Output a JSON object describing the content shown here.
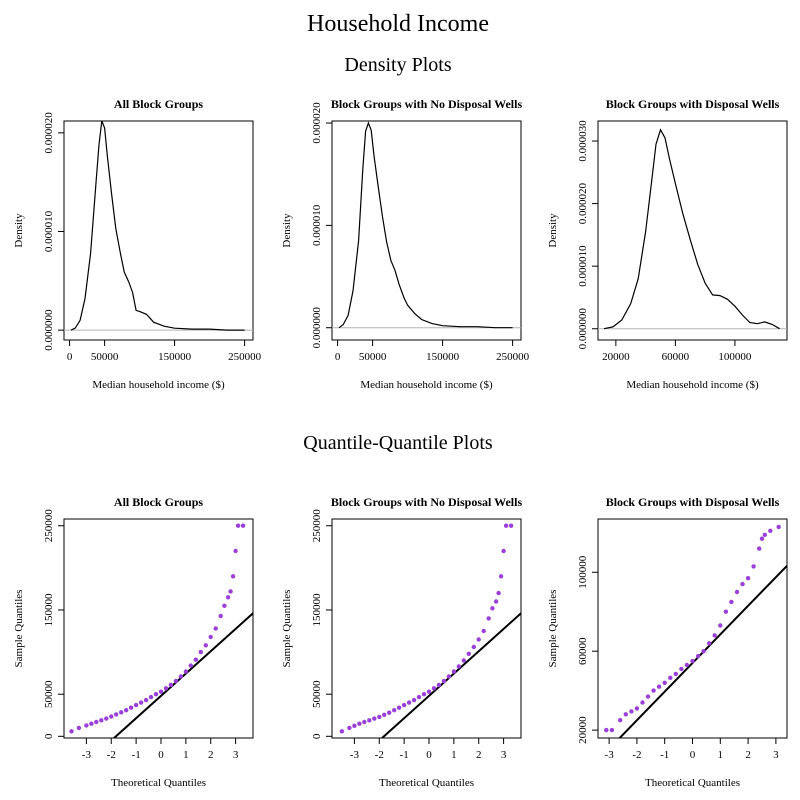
{
  "title": "Household Income",
  "section_density_title": "Density Plots",
  "section_qq_title": "Quantile-Quantile Plots",
  "colors": {
    "qq_points": "#9b3fd9",
    "qq_line": "#000000",
    "density_line": "#000000",
    "baseline": "#b3b3b3"
  },
  "chart_data": [
    {
      "type": "line",
      "kind": "density",
      "title": "All Block Groups",
      "xlabel": "Median household income ($)",
      "ylabel": "Density",
      "xlim": [
        -8000,
        262000
      ],
      "ylim": [
        -1e-06,
        2.12e-05
      ],
      "xticks": [
        0,
        50000,
        150000,
        250000
      ],
      "xtick_labels": [
        "0",
        "50000",
        "150000",
        "250000"
      ],
      "yticks": [
        0,
        1e-05,
        2e-05
      ],
      "ytick_labels": [
        "0.000000",
        "0.000010",
        "0.000020"
      ],
      "x": [
        2000,
        8000,
        15000,
        22000,
        30000,
        38000,
        42000,
        46000,
        50000,
        54000,
        60000,
        66000,
        72000,
        78000,
        85000,
        90000,
        95000,
        100000,
        110000,
        120000,
        135000,
        150000,
        175000,
        200000,
        225000,
        250000
      ],
      "y": [
        0.0,
        2e-07,
        1e-06,
        3.2e-06,
        7.8e-06,
        1.52e-05,
        1.88e-05,
        2.12e-05,
        2.05e-05,
        1.76e-05,
        1.38e-05,
        1.03e-05,
        8e-06,
        5.9e-06,
        4.8e-06,
        3.8e-06,
        2e-06,
        1.9e-06,
        1.6e-06,
        8e-07,
        4e-07,
        2e-07,
        1e-07,
        1e-07,
        0.0,
        0.0
      ]
    },
    {
      "type": "line",
      "kind": "density",
      "title": "Block Groups with No Disposal Wells",
      "xlabel": "Median household income ($)",
      "ylabel": "Density",
      "xlim": [
        -8000,
        262000
      ],
      "ylim": [
        -1.2e-06,
        2.02e-05
      ],
      "xticks": [
        0,
        50000,
        150000,
        250000
      ],
      "xtick_labels": [
        "0",
        "50000",
        "150000",
        "250000"
      ],
      "yticks": [
        0,
        1e-05,
        2e-05
      ],
      "ytick_labels": [
        "0.000000",
        "0.000010",
        "0.000020"
      ],
      "x": [
        2000,
        8000,
        15000,
        22000,
        30000,
        36000,
        40000,
        44000,
        48000,
        52000,
        58000,
        64000,
        70000,
        76000,
        82000,
        88000,
        95000,
        100000,
        110000,
        120000,
        135000,
        150000,
        175000,
        200000,
        225000,
        250000
      ],
      "y": [
        0.0,
        3e-07,
        1.2e-06,
        3.6e-06,
        8.5e-06,
        1.55e-05,
        1.92e-05,
        2e-05,
        1.93e-05,
        1.68e-05,
        1.38e-05,
        1.09e-05,
        8.4e-06,
        6.6e-06,
        5.6e-06,
        4.2e-06,
        2.9e-06,
        2.2e-06,
        1.4e-06,
        8e-07,
        4e-07,
        2e-07,
        1e-07,
        1e-07,
        0.0,
        0.0
      ]
    },
    {
      "type": "line",
      "kind": "density",
      "title": "Block Groups with Disposal Wells",
      "xlabel": "Median household income ($)",
      "ylabel": "Density",
      "xlim": [
        8000,
        135000
      ],
      "ylim": [
        -1.8e-06,
        3.32e-05
      ],
      "xticks": [
        20000,
        60000,
        100000
      ],
      "xtick_labels": [
        "20000",
        "60000",
        "100000"
      ],
      "yticks": [
        0,
        1e-05,
        2e-05,
        3e-05
      ],
      "ytick_labels": [
        "0.000000",
        "0.000010",
        "0.000020",
        "0.000030"
      ],
      "x": [
        12000,
        18000,
        24000,
        30000,
        35000,
        40000,
        44000,
        47000,
        50000,
        53000,
        56000,
        60000,
        65000,
        70000,
        75000,
        80000,
        85000,
        90000,
        95000,
        100000,
        105000,
        110000,
        115000,
        120000,
        125000,
        130000
      ],
      "y": [
        0.0,
        3e-07,
        1.4e-06,
        4e-06,
        8e-06,
        1.55e-05,
        2.35e-05,
        2.95e-05,
        3.18e-05,
        3.05e-05,
        2.72e-05,
        2.32e-05,
        1.84e-05,
        1.42e-05,
        1.03e-05,
        7.3e-06,
        5.4e-06,
        5.3e-06,
        4.7e-06,
        3.6e-06,
        2.2e-06,
        1e-06,
        8e-07,
        1.1e-06,
        7e-07,
        0.0
      ]
    },
    {
      "type": "scatter",
      "kind": "qq",
      "title": "All Block Groups",
      "xlabel": "Theoretical Quantiles",
      "ylabel": "Sample Quantiles",
      "xlim": [
        -3.9,
        3.7
      ],
      "ylim": [
        -2000,
        258000
      ],
      "xticks": [
        -3,
        -2,
        -1,
        0,
        1,
        2,
        3
      ],
      "xtick_labels": [
        "-3",
        "-2",
        "-1",
        "0",
        "1",
        "2",
        "3"
      ],
      "yticks": [
        0,
        50000,
        150000,
        250000
      ],
      "ytick_labels": [
        "0",
        "50000",
        "150000",
        "250000"
      ],
      "reference_line": {
        "intercept": 48000,
        "slope": 26500
      },
      "x": [
        -3.6,
        -3.3,
        -3.0,
        -2.8,
        -2.6,
        -2.4,
        -2.2,
        -2.0,
        -1.8,
        -1.6,
        -1.4,
        -1.2,
        -1.0,
        -0.8,
        -0.6,
        -0.4,
        -0.2,
        0.0,
        0.2,
        0.4,
        0.6,
        0.8,
        1.0,
        1.2,
        1.4,
        1.6,
        1.8,
        2.0,
        2.2,
        2.4,
        2.55,
        2.7,
        2.8,
        2.9,
        3.0,
        3.1,
        3.3
      ],
      "y": [
        6000,
        10000,
        13000,
        15000,
        17000,
        19000,
        21000,
        23500,
        26000,
        28500,
        31000,
        34000,
        37000,
        40000,
        43000,
        46500,
        50000,
        53000,
        57000,
        61000,
        65500,
        71000,
        77000,
        84000,
        91000,
        100000,
        108000,
        118000,
        128000,
        143000,
        155000,
        165000,
        172000,
        190000,
        220000,
        250000,
        250000
      ]
    },
    {
      "type": "scatter",
      "kind": "qq",
      "title": "Block Groups with No Disposal Wells",
      "xlabel": "Theoretical Quantiles",
      "ylabel": "Sample Quantiles",
      "xlim": [
        -3.9,
        3.7
      ],
      "ylim": [
        -2000,
        258000
      ],
      "xticks": [
        -3,
        -2,
        -1,
        0,
        1,
        2,
        3
      ],
      "xtick_labels": [
        "-3",
        "-2",
        "-1",
        "0",
        "1",
        "2",
        "3"
      ],
      "yticks": [
        0,
        50000,
        150000,
        250000
      ],
      "ytick_labels": [
        "0",
        "50000",
        "150000",
        "250000"
      ],
      "reference_line": {
        "intercept": 48000,
        "slope": 26500
      },
      "x": [
        -3.5,
        -3.2,
        -3.0,
        -2.8,
        -2.6,
        -2.4,
        -2.2,
        -2.0,
        -1.8,
        -1.6,
        -1.4,
        -1.2,
        -1.0,
        -0.8,
        -0.6,
        -0.4,
        -0.2,
        0.0,
        0.2,
        0.4,
        0.6,
        0.8,
        1.0,
        1.2,
        1.4,
        1.6,
        1.8,
        2.0,
        2.2,
        2.4,
        2.55,
        2.7,
        2.8,
        2.9,
        3.0,
        3.1,
        3.3
      ],
      "y": [
        6000,
        10000,
        12500,
        15000,
        17000,
        19000,
        21000,
        23000,
        25500,
        28000,
        31000,
        34000,
        37000,
        40000,
        43000,
        46500,
        50000,
        53000,
        57000,
        61000,
        65500,
        71000,
        77000,
        83000,
        90000,
        98000,
        106000,
        115000,
        125000,
        140000,
        152000,
        160000,
        170000,
        190000,
        220000,
        250000,
        250000
      ]
    },
    {
      "type": "scatter",
      "kind": "qq",
      "title": "Block Groups with Disposal Wells",
      "xlabel": "Theoretical Quantiles",
      "ylabel": "Sample Quantiles",
      "xlim": [
        -3.4,
        3.4
      ],
      "ylim": [
        16000,
        127000
      ],
      "xticks": [
        -3,
        -2,
        -1,
        0,
        1,
        2,
        3
      ],
      "xtick_labels": [
        "-3",
        "-2",
        "-1",
        "0",
        "1",
        "2",
        "3"
      ],
      "yticks": [
        20000,
        60000,
        100000
      ],
      "ytick_labels": [
        "20000",
        "60000",
        "100000"
      ],
      "reference_line": {
        "intercept": 54000,
        "slope": 14500
      },
      "x": [
        -3.1,
        -2.9,
        -2.6,
        -2.4,
        -2.2,
        -2.0,
        -1.8,
        -1.6,
        -1.4,
        -1.2,
        -1.0,
        -0.8,
        -0.6,
        -0.4,
        -0.2,
        0.0,
        0.2,
        0.4,
        0.6,
        0.8,
        1.0,
        1.2,
        1.4,
        1.6,
        1.8,
        2.0,
        2.2,
        2.4,
        2.5,
        2.6,
        2.8,
        3.1
      ],
      "y": [
        20000,
        20000,
        25000,
        28000,
        29500,
        31000,
        34000,
        37000,
        40000,
        42000,
        44000,
        46500,
        48500,
        51000,
        53000,
        55000,
        57500,
        60000,
        64000,
        68000,
        73000,
        80000,
        85000,
        90000,
        94000,
        97000,
        103000,
        112000,
        117000,
        119000,
        121000,
        123000
      ]
    }
  ]
}
